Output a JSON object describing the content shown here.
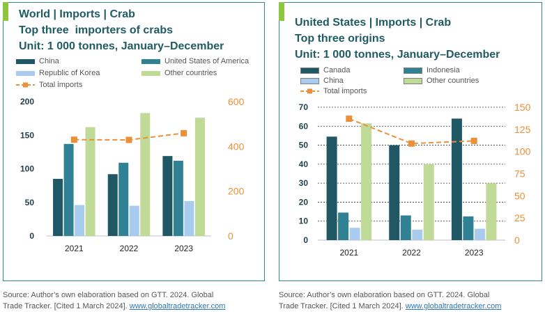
{
  "colors": {
    "china": "#1f5764",
    "usa": "#2f8193",
    "korea": "#a8cbee",
    "other": "#c0db98",
    "canada": "#1f5764",
    "indonesia": "#2f8193",
    "total": "#eb8f39",
    "axis_right": "#eb8f39",
    "title": "#1f5b63",
    "frame": "#2e8a82"
  },
  "left": {
    "title_line1": "World | Imports | Crab",
    "title_line2": "Top three  importers of crabs",
    "title_line3": "Unit: 1 000 tonnes, January–December",
    "legend": {
      "china": "China",
      "usa": "United States of America",
      "korea": "Republic of Korea",
      "other": "Other countries",
      "total": "Total imports"
    },
    "source_line1": "Source: Author’s own elaboration based on GTT. 2024. Global",
    "source_line2": "Trade Tracker. [Cited 1 March 2024]. ",
    "source_link": "www.globaltradetracker.com"
  },
  "right": {
    "title_line1": "United States | Imports | Crab",
    "title_line2": "Top three origins",
    "title_line3": "Unit: 1 000 tonnes, January–December",
    "legend": {
      "canada": "Canada",
      "indonesia": "Indonesia",
      "china": "China",
      "other": "Other countries",
      "total": "Total imports"
    },
    "source_line1": "Source: Author’s own elaboration based on GTT. 2024. Global",
    "source_line2": "Trade Tracker. [Cited 1 March 2024]. ",
    "source_link": "www.globaltradetracker.com"
  },
  "chart_data": [
    {
      "type": "bar",
      "categories": [
        "2021",
        "2022",
        "2023"
      ],
      "series": [
        {
          "name": "China",
          "color_key": "china",
          "values": [
            85,
            92,
            119
          ]
        },
        {
          "name": "United States of America",
          "color_key": "usa",
          "values": [
            137,
            109,
            112
          ]
        },
        {
          "name": "Republic of Korea",
          "color_key": "korea",
          "values": [
            46,
            45,
            52
          ]
        },
        {
          "name": "Other countries",
          "color_key": "other",
          "values": [
            162,
            183,
            176
          ]
        }
      ],
      "line_series": {
        "name": "Total imports",
        "color_key": "total",
        "values": [
          430,
          429,
          459
        ],
        "axis": "right"
      },
      "ylim": [
        0,
        200
      ],
      "yticks": [
        0,
        50,
        100,
        150,
        200
      ],
      "y2lim": [
        0,
        600
      ],
      "y2ticks": [
        0,
        200,
        400,
        600
      ],
      "grid": false,
      "legend_position": "top"
    },
    {
      "type": "bar",
      "categories": [
        "2021",
        "2022",
        "2023"
      ],
      "series": [
        {
          "name": "Canada",
          "color_key": "canada",
          "values": [
            54.5,
            50,
            64
          ]
        },
        {
          "name": "Indonesia",
          "color_key": "indonesia",
          "values": [
            14.5,
            13,
            12.5
          ]
        },
        {
          "name": "China",
          "color_key": "korea",
          "values": [
            6.5,
            5.5,
            6
          ]
        },
        {
          "name": "Other countries",
          "color_key": "other",
          "values": [
            61.5,
            40,
            30
          ]
        }
      ],
      "line_series": {
        "name": "Total imports",
        "color_key": "total",
        "values": [
          137,
          109,
          112
        ],
        "axis": "right"
      },
      "ylim": [
        0,
        70
      ],
      "yticks": [
        0,
        10,
        20,
        30,
        40,
        50,
        60,
        70
      ],
      "y2lim": [
        0,
        150
      ],
      "y2ticks": [
        0,
        25,
        50,
        75,
        100,
        125,
        150
      ],
      "grid": true,
      "legend_position": "top"
    }
  ]
}
